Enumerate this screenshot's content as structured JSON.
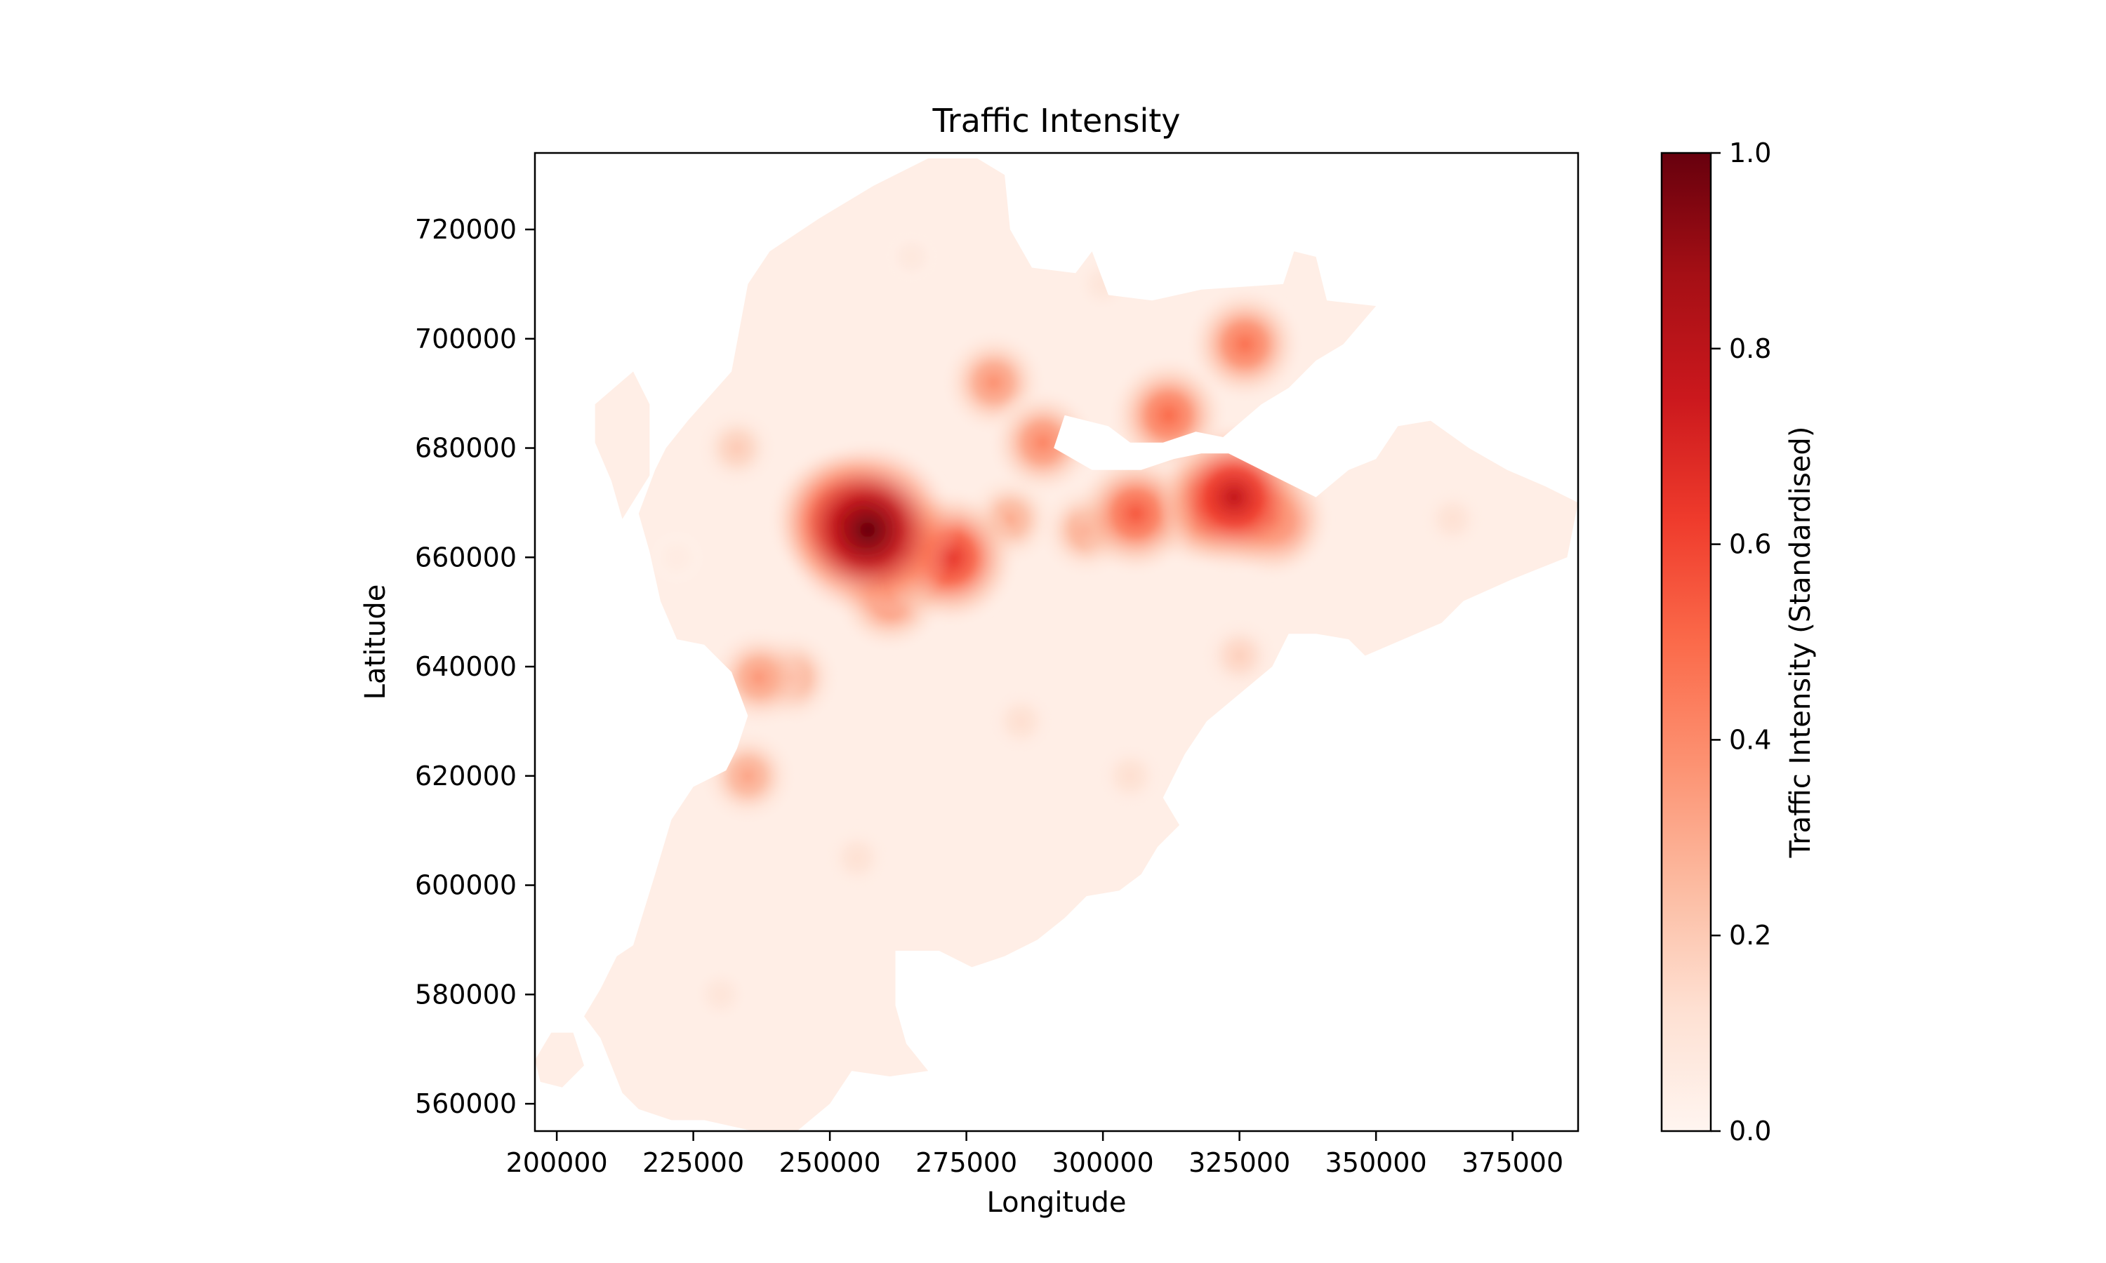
{
  "chart_data": {
    "type": "heatmap",
    "title": "Traffic Intensity",
    "xlabel": "Longitude",
    "ylabel": "Latitude",
    "xlim": [
      196000,
      387000
    ],
    "ylim": [
      555000,
      734000
    ],
    "x_ticks": [
      200000,
      225000,
      250000,
      275000,
      300000,
      325000,
      350000,
      375000
    ],
    "y_ticks": [
      560000,
      580000,
      600000,
      620000,
      640000,
      660000,
      680000,
      700000,
      720000
    ],
    "grid": false,
    "colormap": "Reds",
    "colorbar": {
      "label": "Traffic Intensity (Standardised)",
      "range": [
        0.0,
        1.0
      ],
      "ticks": [
        "0.0",
        "0.2",
        "0.4",
        "0.6",
        "0.8",
        "1.0"
      ],
      "colors": [
        "#fff5f0",
        "#fee0d2",
        "#fcbba1",
        "#fc9272",
        "#fb6a4a",
        "#ef3b2c",
        "#cb181d",
        "#a50f15",
        "#67000d"
      ]
    },
    "hotspots": [
      {
        "x": 257000,
        "y": 665000,
        "value": 1.0
      },
      {
        "x": 252000,
        "y": 667000,
        "value": 0.72
      },
      {
        "x": 264000,
        "y": 661000,
        "value": 0.62
      },
      {
        "x": 272000,
        "y": 660000,
        "value": 0.66
      },
      {
        "x": 261000,
        "y": 653000,
        "value": 0.45
      },
      {
        "x": 324000,
        "y": 671000,
        "value": 0.78
      },
      {
        "x": 318000,
        "y": 669000,
        "value": 0.52
      },
      {
        "x": 331000,
        "y": 667000,
        "value": 0.52
      },
      {
        "x": 306000,
        "y": 668000,
        "value": 0.55
      },
      {
        "x": 289000,
        "y": 681000,
        "value": 0.42
      },
      {
        "x": 312000,
        "y": 686000,
        "value": 0.5
      },
      {
        "x": 326000,
        "y": 699000,
        "value": 0.48
      },
      {
        "x": 280000,
        "y": 692000,
        "value": 0.38
      },
      {
        "x": 283000,
        "y": 667000,
        "value": 0.3
      },
      {
        "x": 297000,
        "y": 665000,
        "value": 0.32
      },
      {
        "x": 237000,
        "y": 638000,
        "value": 0.36
      },
      {
        "x": 243000,
        "y": 638000,
        "value": 0.32
      },
      {
        "x": 235000,
        "y": 620000,
        "value": 0.32
      },
      {
        "x": 233000,
        "y": 680000,
        "value": 0.2
      },
      {
        "x": 325000,
        "y": 642000,
        "value": 0.18
      },
      {
        "x": 364000,
        "y": 667000,
        "value": 0.12
      },
      {
        "x": 255000,
        "y": 605000,
        "value": 0.12
      },
      {
        "x": 285000,
        "y": 630000,
        "value": 0.13
      },
      {
        "x": 305000,
        "y": 620000,
        "value": 0.13
      },
      {
        "x": 230000,
        "y": 580000,
        "value": 0.1
      },
      {
        "x": 222000,
        "y": 660000,
        "value": 0.06
      },
      {
        "x": 300000,
        "y": 710000,
        "value": 0.1
      },
      {
        "x": 265000,
        "y": 715000,
        "value": 0.08
      }
    ],
    "region_outlines": [
      [
        [
          224000,
          685000
        ],
        [
          232000,
          694000
        ],
        [
          235000,
          710000
        ],
        [
          239000,
          716000
        ],
        [
          248000,
          722000
        ],
        [
          258000,
          728000
        ],
        [
          268000,
          733000
        ],
        [
          277000,
          733000
        ],
        [
          282000,
          730000
        ],
        [
          283000,
          720000
        ],
        [
          287000,
          713000
        ],
        [
          295000,
          712000
        ],
        [
          298000,
          716000
        ],
        [
          301000,
          708000
        ],
        [
          309000,
          707000
        ],
        [
          318000,
          709000
        ],
        [
          333000,
          710000
        ],
        [
          335000,
          716000
        ],
        [
          339000,
          715000
        ],
        [
          341000,
          707000
        ],
        [
          350000,
          706000
        ],
        [
          344000,
          699000
        ],
        [
          339000,
          696000
        ],
        [
          334000,
          691000
        ],
        [
          329000,
          688000
        ],
        [
          322000,
          682000
        ],
        [
          317000,
          683000
        ],
        [
          311000,
          681000
        ],
        [
          305000,
          681000
        ],
        [
          301000,
          684000
        ],
        [
          293000,
          686000
        ],
        [
          291000,
          680000
        ],
        [
          298000,
          676000
        ],
        [
          307000,
          676000
        ],
        [
          313000,
          678000
        ],
        [
          318000,
          679000
        ],
        [
          323000,
          679000
        ],
        [
          331000,
          675000
        ],
        [
          339000,
          671000
        ],
        [
          345000,
          676000
        ],
        [
          350000,
          678000
        ],
        [
          354000,
          684000
        ],
        [
          360000,
          685000
        ],
        [
          367000,
          680000
        ],
        [
          374000,
          676000
        ],
        [
          381000,
          673000
        ],
        [
          387000,
          670000
        ],
        [
          385000,
          660000
        ],
        [
          375000,
          656000
        ],
        [
          366000,
          652000
        ],
        [
          362000,
          648000
        ],
        [
          355000,
          645000
        ],
        [
          348000,
          642000
        ],
        [
          345000,
          645000
        ],
        [
          339000,
          646000
        ],
        [
          334000,
          646000
        ],
        [
          331000,
          640000
        ],
        [
          325000,
          635000
        ],
        [
          319000,
          630000
        ],
        [
          315000,
          624000
        ],
        [
          311000,
          616000
        ],
        [
          314000,
          611000
        ],
        [
          310000,
          607000
        ],
        [
          307000,
          602000
        ],
        [
          303000,
          599000
        ],
        [
          297000,
          598000
        ],
        [
          293000,
          594000
        ],
        [
          288000,
          590000
        ],
        [
          282000,
          587000
        ],
        [
          276000,
          585000
        ],
        [
          270000,
          588000
        ],
        [
          262000,
          588000
        ],
        [
          262000,
          578000
        ],
        [
          264000,
          571000
        ],
        [
          268000,
          566000
        ],
        [
          261000,
          565000
        ],
        [
          254000,
          566000
        ],
        [
          250000,
          560000
        ],
        [
          244000,
          555000
        ],
        [
          236000,
          555000
        ],
        [
          227000,
          557000
        ],
        [
          221000,
          557000
        ],
        [
          215000,
          559000
        ],
        [
          212000,
          562000
        ],
        [
          208000,
          572000
        ],
        [
          205000,
          576000
        ],
        [
          208000,
          581000
        ],
        [
          211000,
          587000
        ],
        [
          214000,
          589000
        ],
        [
          218000,
          602000
        ],
        [
          221000,
          612000
        ],
        [
          225000,
          618000
        ],
        [
          231000,
          621000
        ],
        [
          233000,
          625000
        ],
        [
          235000,
          631000
        ],
        [
          232000,
          639000
        ],
        [
          227000,
          644000
        ],
        [
          222000,
          645000
        ],
        [
          219000,
          652000
        ],
        [
          217000,
          661000
        ],
        [
          215000,
          668000
        ],
        [
          218000,
          676000
        ],
        [
          220000,
          680000
        ]
      ],
      [
        [
          207000,
          688000
        ],
        [
          214000,
          694000
        ],
        [
          217000,
          688000
        ],
        [
          217000,
          675000
        ],
        [
          212000,
          667000
        ],
        [
          210000,
          674000
        ],
        [
          207000,
          681000
        ]
      ],
      [
        [
          196000,
          568000
        ],
        [
          199000,
          573000
        ],
        [
          203000,
          573000
        ],
        [
          205000,
          567000
        ],
        [
          201000,
          563000
        ],
        [
          197000,
          564000
        ]
      ]
    ]
  }
}
